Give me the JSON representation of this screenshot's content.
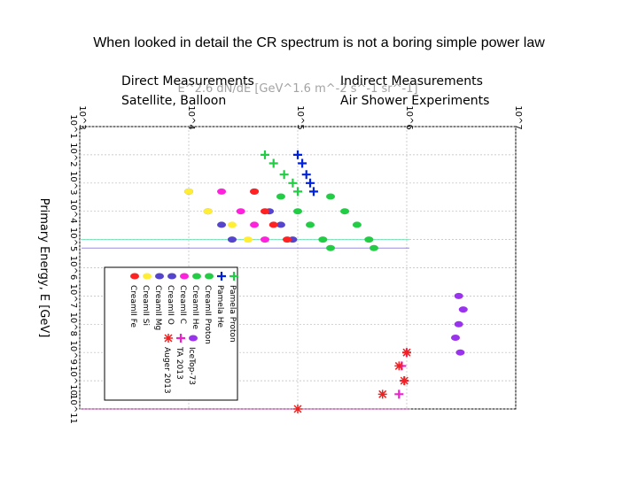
{
  "slide": {
    "heading": "When looked in detail the CR spectrum is not a boring simple power law",
    "left_label_line1": "Direct Measurements",
    "left_label_line2": "Satellite, Balloon",
    "right_label_line1": "Indirect Measurements",
    "right_label_line2": "Air Shower Experiments"
  },
  "chart_data": {
    "type": "scatter",
    "orientation": "rotated 90 degrees clockwise",
    "xlabel": "Primary Energy, E [GeV]",
    "ylabel": "E^2.6 dN/dE [GeV^1.6 m^-2 s^-1 sr^-1]",
    "xscale": "log",
    "yscale": "log",
    "xlim": [
      10,
      100000000000
    ],
    "ylim": [
      1000,
      10000000
    ],
    "x_ticks": [
      "10^1",
      "10^2",
      "10^3",
      "10^4",
      "10^5",
      "10^6",
      "10^7",
      "10^8",
      "10^9",
      "10^10",
      "10^11"
    ],
    "y_ticks": [
      "10^3",
      "10^4",
      "10^5",
      "10^6",
      "10^7"
    ],
    "grid": true,
    "legend_position": "lower-left",
    "series": [
      {
        "name": "Pamela Proton",
        "color": "#22cc44",
        "marker": "plus",
        "x": [
          100,
          200,
          500,
          1000,
          2000
        ],
        "y": [
          50000,
          60000,
          75000,
          90000,
          100000
        ]
      },
      {
        "name": "Pamela He",
        "color": "#0022dd",
        "marker": "plus",
        "x": [
          100,
          200,
          500,
          1000,
          2000
        ],
        "y": [
          100000,
          110000,
          120000,
          130000,
          140000
        ]
      },
      {
        "name": "CreamII Proton",
        "color": "#22cc44",
        "marker": "ellipse",
        "x": [
          3000,
          10000,
          30000,
          100000,
          200000
        ],
        "y": [
          200000,
          270000,
          350000,
          450000,
          500000
        ]
      },
      {
        "name": "CreamII He",
        "color": "#22cc44",
        "marker": "ellipse",
        "x": [
          3000,
          10000,
          30000,
          100000,
          200000
        ],
        "y": [
          70000,
          100000,
          130000,
          170000,
          200000
        ]
      },
      {
        "name": "CreamII C",
        "color": "#ff22dd",
        "marker": "ellipse",
        "x": [
          2000,
          10000,
          30000,
          100000
        ],
        "y": [
          20000,
          30000,
          40000,
          50000
        ]
      },
      {
        "name": "CreamII O",
        "color": "#5544cc",
        "marker": "ellipse",
        "x": [
          2000,
          10000,
          30000,
          100000
        ],
        "y": [
          10000,
          15000,
          20000,
          25000
        ]
      },
      {
        "name": "CreamII Mg",
        "color": "#5544cc",
        "marker": "ellipse",
        "x": [
          2000,
          10000,
          30000,
          100000
        ],
        "y": [
          40000,
          55000,
          70000,
          90000
        ]
      },
      {
        "name": "CreamII Si",
        "color": "#ffee33",
        "marker": "ellipse",
        "x": [
          2000,
          10000,
          30000,
          100000
        ],
        "y": [
          10000,
          15000,
          25000,
          35000
        ]
      },
      {
        "name": "CreamII Fe",
        "color": "#ff2222",
        "marker": "ellipse",
        "x": [
          2000,
          10000,
          30000,
          100000
        ],
        "y": [
          40000,
          50000,
          60000,
          80000
        ]
      },
      {
        "name": "IceTop-73",
        "color": "#9933ee",
        "marker": "ellipse",
        "x": [
          10000000,
          30000000,
          100000000,
          300000000,
          1000000000
        ],
        "y": [
          3000000,
          3300000,
          3000000,
          2800000,
          3100000
        ]
      },
      {
        "name": "TA 2013",
        "color": "#ee22cc",
        "marker": "plus",
        "x": [
          1000000000,
          3000000000,
          10000000000,
          30000000000
        ],
        "y": [
          1000000,
          900000,
          950000,
          850000
        ]
      },
      {
        "name": "Auger 2013",
        "color": "#ee2222",
        "marker": "star",
        "x": [
          1000000000,
          3000000000,
          10000000000,
          30000000000,
          100000000000
        ],
        "y": [
          1000000,
          850000,
          950000,
          600000,
          100000
        ]
      }
    ]
  }
}
